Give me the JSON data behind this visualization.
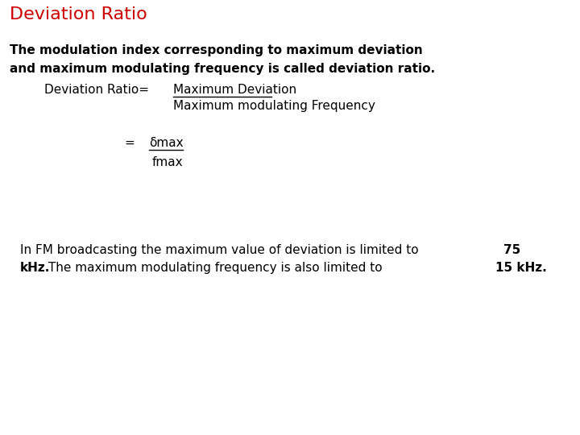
{
  "title": "Deviation Ratio",
  "title_color": "#cc0000",
  "title_fontsize": 16,
  "bg_color": "#ffffff",
  "bold_line1": "The modulation index corresponding to maximum deviation",
  "bold_line2": "and maximum modulating frequency is called deviation ratio.",
  "dr_label": "Deviation Ratio= ",
  "numerator": "Maximum Deviation",
  "denominator": "Maximum modulating Frequency",
  "eq_symbol": "= ",
  "delta_num": "δmax",
  "delta_den": "fmax",
  "fm_text_normal1": "In FM broadcasting the maximum value of deviation is limited to ",
  "fm_bold1": "75",
  "fm_line2_bold": "kHz.",
  "fm_text_normal2": " The maximum modulating frequency is also limited to ",
  "fm_bold2": "15 kHz.",
  "mono_font": "Courier New",
  "sans_font": "DejaVu Sans"
}
